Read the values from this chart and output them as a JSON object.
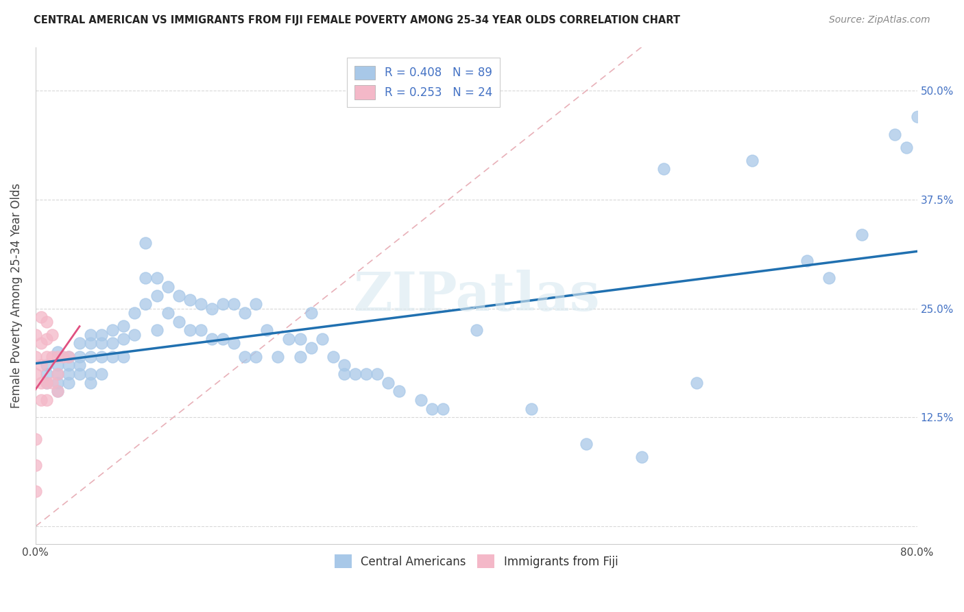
{
  "title": "CENTRAL AMERICAN VS IMMIGRANTS FROM FIJI FEMALE POVERTY AMONG 25-34 YEAR OLDS CORRELATION CHART",
  "source": "Source: ZipAtlas.com",
  "ylabel": "Female Poverty Among 25-34 Year Olds",
  "xlim": [
    0.0,
    0.8
  ],
  "ylim": [
    -0.02,
    0.55
  ],
  "xticks": [
    0.0,
    0.1,
    0.2,
    0.3,
    0.4,
    0.5,
    0.6,
    0.7,
    0.8
  ],
  "xticklabels": [
    "0.0%",
    "",
    "",
    "",
    "",
    "",
    "",
    "",
    "80.0%"
  ],
  "yticks": [
    0.0,
    0.125,
    0.25,
    0.375,
    0.5
  ],
  "yticklabels": [
    "",
    "12.5%",
    "25.0%",
    "37.5%",
    "50.0%"
  ],
  "color_blue": "#a8c8e8",
  "color_pink": "#f4b8c8",
  "color_blue_line": "#2070b0",
  "color_pink_line": "#e05080",
  "color_diag": "#e0b0b8",
  "watermark": "ZIPatlas",
  "blue_x": [
    0.01,
    0.01,
    0.01,
    0.02,
    0.02,
    0.02,
    0.02,
    0.02,
    0.03,
    0.03,
    0.03,
    0.03,
    0.04,
    0.04,
    0.04,
    0.04,
    0.05,
    0.05,
    0.05,
    0.05,
    0.05,
    0.06,
    0.06,
    0.06,
    0.06,
    0.07,
    0.07,
    0.07,
    0.08,
    0.08,
    0.08,
    0.09,
    0.09,
    0.1,
    0.1,
    0.1,
    0.11,
    0.11,
    0.11,
    0.12,
    0.12,
    0.13,
    0.13,
    0.14,
    0.14,
    0.15,
    0.15,
    0.16,
    0.16,
    0.17,
    0.17,
    0.18,
    0.18,
    0.19,
    0.19,
    0.2,
    0.2,
    0.21,
    0.22,
    0.23,
    0.24,
    0.24,
    0.25,
    0.25,
    0.26,
    0.27,
    0.28,
    0.28,
    0.29,
    0.3,
    0.31,
    0.32,
    0.33,
    0.35,
    0.36,
    0.37,
    0.4,
    0.45,
    0.5,
    0.55,
    0.57,
    0.6,
    0.65,
    0.7,
    0.72,
    0.75,
    0.78,
    0.79,
    0.8
  ],
  "blue_y": [
    0.185,
    0.175,
    0.165,
    0.2,
    0.185,
    0.175,
    0.165,
    0.155,
    0.195,
    0.185,
    0.175,
    0.165,
    0.21,
    0.195,
    0.185,
    0.175,
    0.22,
    0.21,
    0.195,
    0.175,
    0.165,
    0.22,
    0.21,
    0.195,
    0.175,
    0.225,
    0.21,
    0.195,
    0.23,
    0.215,
    0.195,
    0.245,
    0.22,
    0.325,
    0.285,
    0.255,
    0.285,
    0.265,
    0.225,
    0.275,
    0.245,
    0.265,
    0.235,
    0.26,
    0.225,
    0.255,
    0.225,
    0.25,
    0.215,
    0.255,
    0.215,
    0.255,
    0.21,
    0.245,
    0.195,
    0.255,
    0.195,
    0.225,
    0.195,
    0.215,
    0.215,
    0.195,
    0.245,
    0.205,
    0.215,
    0.195,
    0.185,
    0.175,
    0.175,
    0.175,
    0.175,
    0.165,
    0.155,
    0.145,
    0.135,
    0.135,
    0.225,
    0.135,
    0.095,
    0.08,
    0.41,
    0.165,
    0.42,
    0.305,
    0.285,
    0.335,
    0.45,
    0.435,
    0.47
  ],
  "pink_x": [
    0.0,
    0.0,
    0.0,
    0.0,
    0.0,
    0.0,
    0.005,
    0.005,
    0.005,
    0.005,
    0.005,
    0.01,
    0.01,
    0.01,
    0.01,
    0.01,
    0.015,
    0.015,
    0.015,
    0.02,
    0.02,
    0.02,
    0.025,
    0.03
  ],
  "pink_y": [
    0.04,
    0.07,
    0.1,
    0.22,
    0.195,
    0.175,
    0.24,
    0.21,
    0.185,
    0.165,
    0.145,
    0.235,
    0.215,
    0.195,
    0.165,
    0.145,
    0.22,
    0.195,
    0.165,
    0.195,
    0.175,
    0.155,
    0.195,
    0.195
  ]
}
